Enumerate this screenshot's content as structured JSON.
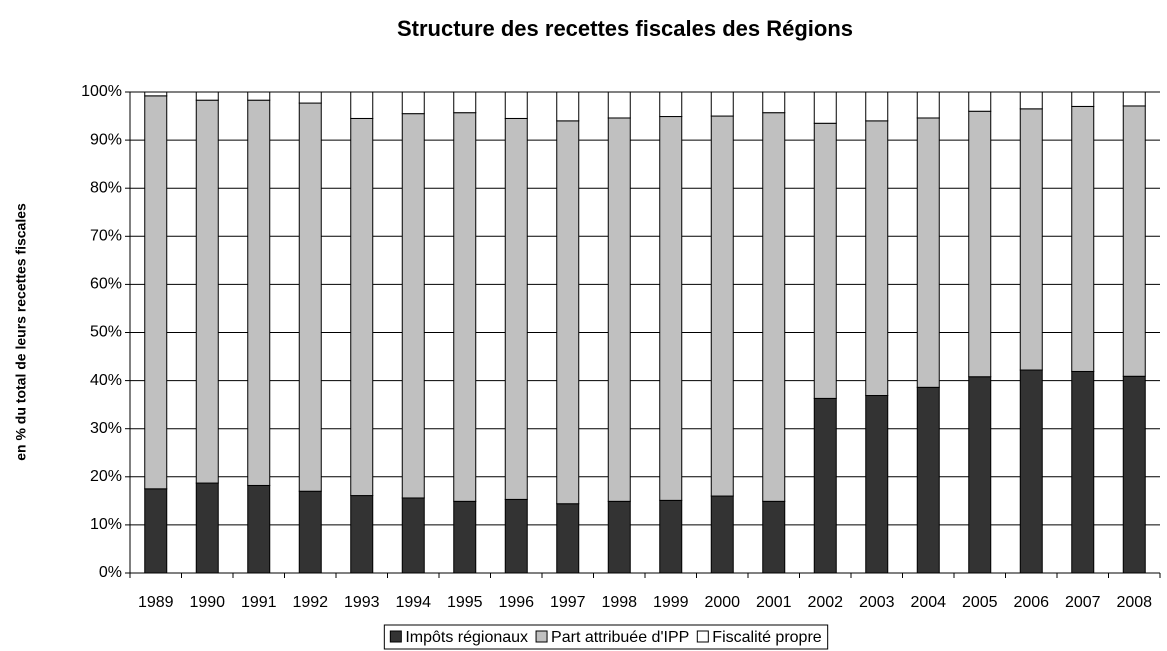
{
  "chart_data": {
    "type": "stacked_bar",
    "title": "Structure des recettes fiscales des Régions",
    "y_label": "en % du total de leurs recettes fiscales",
    "categories": [
      "1989",
      "1990",
      "1991",
      "1992",
      "1993",
      "1994",
      "1995",
      "1996",
      "1997",
      "1998",
      "1999",
      "2000",
      "2001",
      "2002",
      "2003",
      "2004",
      "2005",
      "2006",
      "2007",
      "2008"
    ],
    "series": [
      {
        "name": "Impôts régionaux",
        "color": "#333333",
        "values": [
          17.5,
          18.7,
          18.2,
          17.0,
          16.1,
          15.6,
          14.9,
          15.3,
          14.4,
          14.9,
          15.1,
          16.0,
          14.9,
          36.3,
          36.9,
          38.6,
          40.8,
          42.2,
          41.9,
          40.9
        ]
      },
      {
        "name": "Part attribuée d'IPP",
        "color": "#c0c0c0",
        "values": [
          81.7,
          79.6,
          80.1,
          80.7,
          78.4,
          79.9,
          80.8,
          79.2,
          79.6,
          79.7,
          79.8,
          79.0,
          80.8,
          57.2,
          57.1,
          56.0,
          55.2,
          54.3,
          55.1,
          56.2
        ]
      },
      {
        "name": "Fiscalité propre",
        "color": "#ffffff",
        "values": [
          0.8,
          1.7,
          1.7,
          2.3,
          5.5,
          4.5,
          4.3,
          5.5,
          6.0,
          5.4,
          5.1,
          5.0,
          4.3,
          6.5,
          6.0,
          5.4,
          4.0,
          3.5,
          3.0,
          2.9
        ]
      }
    ],
    "ylim": [
      0,
      100
    ],
    "yticks": [
      {
        "value": 0,
        "label": "0%"
      },
      {
        "value": 10,
        "label": "10%"
      },
      {
        "value": 20,
        "label": "20%"
      },
      {
        "value": 30,
        "label": "30%"
      },
      {
        "value": 40,
        "label": "40%"
      },
      {
        "value": 50,
        "label": "50%"
      },
      {
        "value": 60,
        "label": "60%"
      },
      {
        "value": 70,
        "label": "70%"
      },
      {
        "value": 80,
        "label": "80%"
      },
      {
        "value": 90,
        "label": "90%"
      },
      {
        "value": 100,
        "label": "100%"
      }
    ],
    "grid": true,
    "legend": "bottom"
  }
}
